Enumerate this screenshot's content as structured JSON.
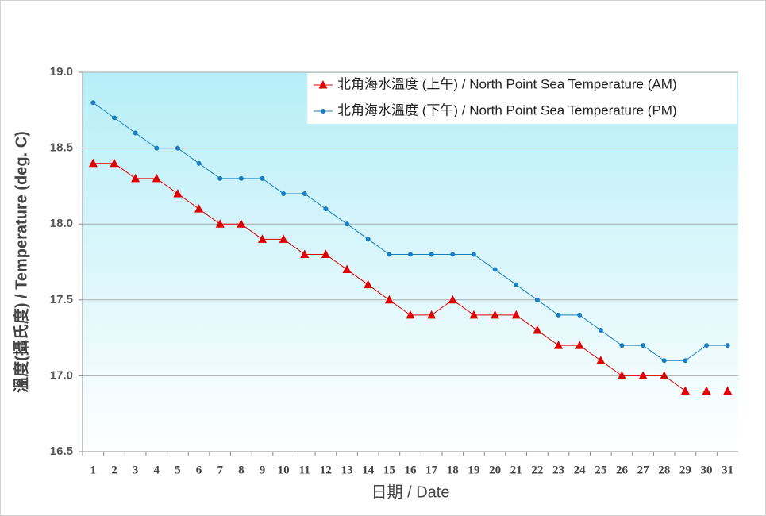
{
  "chart_data": {
    "type": "line",
    "x_label": "日期 / Date",
    "y_label": "溫度(攝氏度) / Temperature (deg. C)",
    "categories": [
      "1",
      "2",
      "3",
      "4",
      "5",
      "6",
      "7",
      "8",
      "9",
      "10",
      "11",
      "12",
      "13",
      "14",
      "15",
      "16",
      "17",
      "18",
      "19",
      "20",
      "21",
      "22",
      "23",
      "24",
      "25",
      "26",
      "27",
      "28",
      "29",
      "30",
      "31"
    ],
    "series": [
      {
        "name": "北角海水溫度 (上午) / North Point Sea Temperature (AM)",
        "color": "#e00000",
        "marker": "triangle",
        "values": [
          18.4,
          18.4,
          18.3,
          18.3,
          18.2,
          18.1,
          18.0,
          18.0,
          17.9,
          17.9,
          17.8,
          17.8,
          17.7,
          17.6,
          17.5,
          17.4,
          17.4,
          17.5,
          17.4,
          17.4,
          17.4,
          17.3,
          17.2,
          17.2,
          17.1,
          17.0,
          17.0,
          17.0,
          16.9,
          16.9,
          16.9
        ]
      },
      {
        "name": "北角海水溫度 (下午) / North Point Sea Temperature (PM)",
        "color": "#1a7fc1",
        "marker": "circle",
        "values": [
          18.8,
          18.7,
          18.6,
          18.5,
          18.5,
          18.4,
          18.3,
          18.3,
          18.3,
          18.2,
          18.2,
          18.1,
          18.0,
          17.9,
          17.8,
          17.8,
          17.8,
          17.8,
          17.8,
          17.7,
          17.6,
          17.5,
          17.4,
          17.4,
          17.3,
          17.2,
          17.2,
          17.1,
          17.1,
          17.2,
          17.2
        ]
      }
    ],
    "ylim": [
      16.5,
      19.0
    ],
    "yticks": [
      {
        "value": 16.5,
        "label": "16.5"
      },
      {
        "value": 17,
        "label": "17.0"
      },
      {
        "value": 17.5,
        "label": "17.5"
      },
      {
        "value": 18,
        "label": "18.0"
      },
      {
        "value": 18.5,
        "label": "18.5"
      },
      {
        "value": 19,
        "label": "19.0"
      }
    ],
    "grid": true
  }
}
